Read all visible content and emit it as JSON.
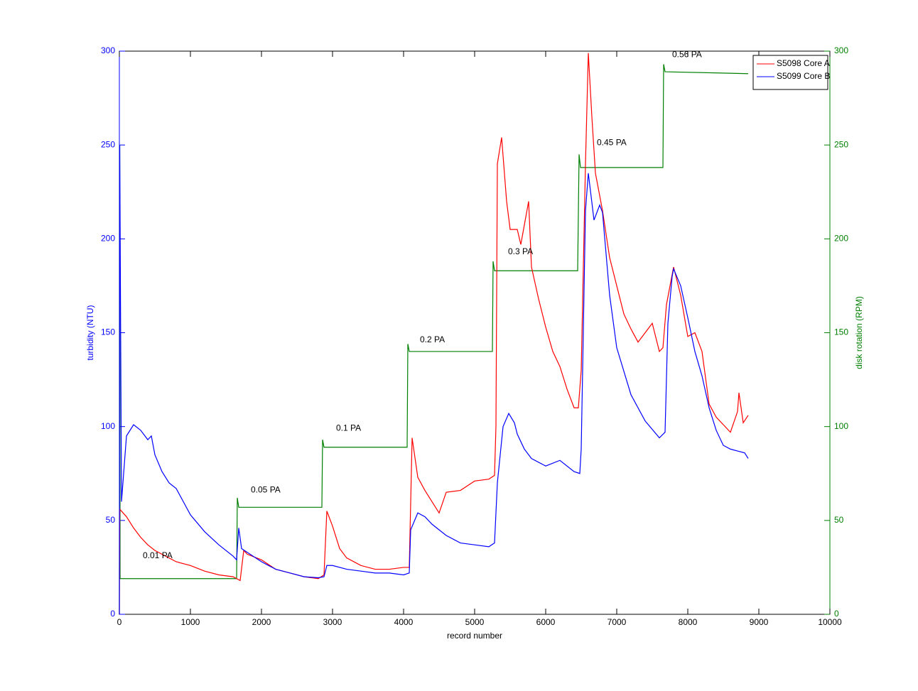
{
  "chart_data": {
    "type": "line",
    "xlabel": "record number",
    "ylabel": "turbidity (NTU)",
    "y2label": "disk rotation (RPM)",
    "y_axis_color": "#0000ff",
    "y2_axis_color": "#007f00",
    "xlim": [
      0,
      10000
    ],
    "xticks": [
      0,
      1000,
      2000,
      3000,
      4000,
      5000,
      6000,
      7000,
      8000,
      9000,
      10000
    ],
    "ylim": [
      0,
      300
    ],
    "yticks": [
      0,
      50,
      100,
      150,
      200,
      250,
      300
    ],
    "y2lim": [
      0,
      300
    ],
    "y2ticks": [
      0,
      50,
      100,
      150,
      200,
      250,
      300
    ],
    "legend": "northeast",
    "series": [
      {
        "name": "S5098 Core A",
        "color": "#ff0000",
        "x": [
          0,
          5,
          100,
          200,
          300,
          400,
          500,
          700,
          800,
          1000,
          1200,
          1400,
          1600,
          1700,
          1750,
          1800,
          2000,
          2200,
          2400,
          2600,
          2800,
          2880,
          2920,
          3000,
          3100,
          3200,
          3400,
          3600,
          3800,
          4000,
          4080,
          4120,
          4200,
          4300,
          4400,
          4500,
          4600,
          4800,
          5000,
          5200,
          5280,
          5300,
          5320,
          5380,
          5450,
          5500,
          5600,
          5650,
          5760,
          5800,
          5900,
          6000,
          6100,
          6200,
          6300,
          6400,
          6460,
          6500,
          6560,
          6600,
          6650,
          6700,
          6800,
          6900,
          7000,
          7100,
          7200,
          7300,
          7400,
          7500,
          7600,
          7650,
          7700,
          7800,
          7900,
          8000,
          8100,
          8200,
          8300,
          8400,
          8500,
          8600,
          8700,
          8720,
          8780,
          8850
        ],
        "values": [
          0,
          56,
          52,
          46,
          41,
          37,
          34,
          30,
          28,
          26,
          23,
          21,
          20,
          18,
          34,
          32,
          29,
          24,
          22,
          20,
          19,
          21,
          55,
          47,
          35,
          30,
          26,
          24,
          24,
          25,
          25,
          94,
          73,
          66,
          60,
          54,
          65,
          66,
          71,
          72,
          74,
          100,
          240,
          254,
          220,
          205,
          205,
          197,
          220,
          185,
          168,
          153,
          140,
          132,
          120,
          110,
          110,
          130,
          240,
          299,
          265,
          235,
          215,
          190,
          175,
          160,
          152,
          145,
          150,
          155,
          140,
          142,
          165,
          185,
          170,
          148,
          150,
          140,
          112,
          105,
          101,
          97,
          108,
          118,
          102,
          106
        ]
      },
      {
        "name": "S5099 Core B",
        "color": "#0000ff",
        "x": [
          0,
          5,
          30,
          100,
          200,
          300,
          400,
          450,
          500,
          600,
          700,
          800,
          900,
          1000,
          1200,
          1400,
          1600,
          1650,
          1680,
          1720,
          1800,
          2000,
          2200,
          2400,
          2600,
          2800,
          2880,
          2920,
          3000,
          3200,
          3400,
          3600,
          3800,
          4000,
          4080,
          4100,
          4200,
          4300,
          4400,
          4600,
          4800,
          5000,
          5200,
          5280,
          5320,
          5400,
          5480,
          5560,
          5600,
          5700,
          5800,
          6000,
          6200,
          6400,
          6480,
          6500,
          6560,
          6600,
          6680,
          6760,
          6800,
          6900,
          7000,
          7200,
          7400,
          7600,
          7680,
          7720,
          7780,
          7800,
          7900,
          8000,
          8100,
          8200,
          8300,
          8400,
          8500,
          8600,
          8700,
          8800,
          8850
        ],
        "values": [
          0,
          250,
          60,
          95,
          101,
          98,
          93,
          95,
          85,
          76,
          70,
          67,
          60,
          53,
          44,
          37,
          31,
          29,
          46,
          35,
          33,
          28,
          24,
          22,
          20,
          19.5,
          20,
          26,
          26,
          24,
          23,
          22,
          22,
          21,
          22,
          45,
          54,
          52,
          48,
          42,
          38,
          37,
          36,
          38,
          70,
          100,
          107,
          102,
          96,
          88,
          83,
          79,
          82,
          76,
          75,
          88,
          215,
          235,
          210,
          218,
          214,
          170,
          142,
          117,
          103,
          94,
          97,
          155,
          180,
          184,
          175,
          158,
          140,
          127,
          110,
          98,
          90,
          88,
          87,
          86,
          83
        ]
      },
      {
        "color": "#007f00",
        "axis": "y2",
        "x": [
          0,
          5,
          10,
          1650,
          1660,
          1680,
          2850,
          2860,
          2880,
          4050,
          4060,
          4080,
          5250,
          5260,
          5280,
          6450,
          6470,
          6490,
          7650,
          7660,
          7680,
          8850
        ],
        "values": [
          0,
          250,
          19,
          19,
          62,
          57,
          57,
          93,
          89,
          89,
          144,
          140,
          140,
          188,
          183,
          183,
          245,
          238,
          238,
          293,
          289,
          288
        ]
      }
    ],
    "annotations": [
      {
        "text": "0.01 PA",
        "x": 330,
        "y": 31
      },
      {
        "text": "0.05 PA",
        "x": 1850,
        "y": 66
      },
      {
        "text": "0.1 PA",
        "x": 3050,
        "y": 99
      },
      {
        "text": "0.2 PA",
        "x": 4230,
        "y": 146
      },
      {
        "text": "0.3 PA",
        "x": 5470,
        "y": 193
      },
      {
        "text": "0.45 PA",
        "x": 6720,
        "y": 251
      },
      {
        "text": "0.56 PA",
        "x": 7780,
        "y": 298
      }
    ]
  }
}
